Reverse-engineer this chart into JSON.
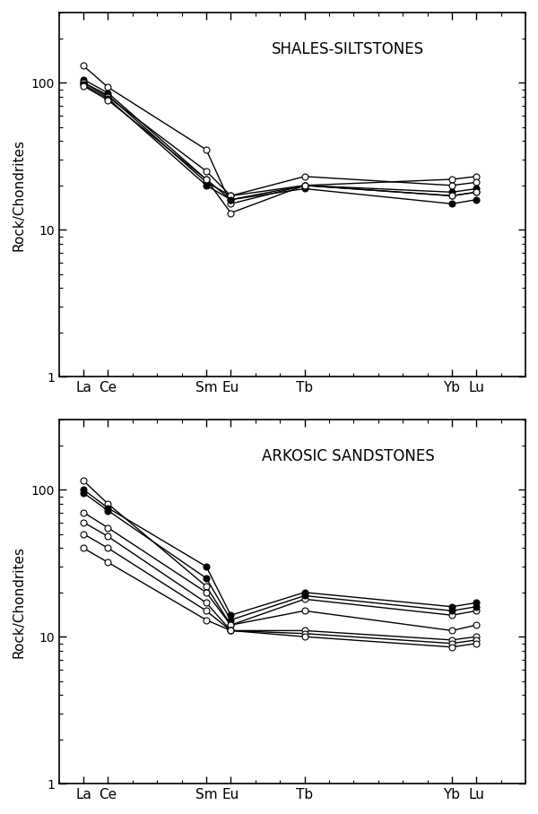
{
  "title_top": "SHALES-SILTSTONES",
  "title_bottom": "ARKOSIC SANDSTONES",
  "ylabel": "Rock/Chondrites",
  "x_positions": [
    1,
    2,
    6,
    7,
    10,
    16,
    17
  ],
  "x_labels": [
    "La",
    "Ce",
    "Sm",
    "Eu",
    "Tb",
    "Yb",
    "Lu"
  ],
  "x_min": 0,
  "x_max": 19,
  "ylim": [
    1,
    300
  ],
  "shales_series": [
    {
      "filled": false,
      "data": [
        130,
        93,
        35,
        15,
        20,
        22,
        23
      ]
    },
    {
      "filled": true,
      "data": [
        105,
        85,
        22,
        16,
        20,
        18,
        19
      ]
    },
    {
      "filled": true,
      "data": [
        100,
        82,
        21,
        17,
        20,
        17,
        18
      ]
    },
    {
      "filled": false,
      "data": [
        100,
        80,
        25,
        17,
        23,
        20,
        21
      ]
    },
    {
      "filled": true,
      "data": [
        97,
        78,
        20,
        16,
        19,
        15,
        16
      ]
    },
    {
      "filled": false,
      "data": [
        95,
        76,
        22,
        13,
        20,
        17,
        18
      ]
    }
  ],
  "arkosic_series": [
    {
      "filled": false,
      "data": [
        115,
        80,
        22,
        12,
        18,
        14,
        15
      ]
    },
    {
      "filled": true,
      "data": [
        100,
        75,
        30,
        14,
        20,
        16,
        17
      ]
    },
    {
      "filled": true,
      "data": [
        95,
        72,
        25,
        13,
        19,
        15,
        16
      ]
    },
    {
      "filled": false,
      "data": [
        70,
        55,
        20,
        12,
        15,
        11,
        12
      ]
    },
    {
      "filled": false,
      "data": [
        60,
        48,
        17,
        11,
        11,
        9.5,
        10
      ]
    },
    {
      "filled": false,
      "data": [
        50,
        40,
        15,
        11,
        10.5,
        9,
        9.5
      ]
    },
    {
      "filled": false,
      "data": [
        40,
        32,
        13,
        11,
        10,
        8.5,
        9
      ]
    }
  ],
  "markersize": 5,
  "linewidth": 1.0,
  "fontsize_ticks": 11,
  "fontsize_title": 12,
  "fontsize_ylabel": 11
}
